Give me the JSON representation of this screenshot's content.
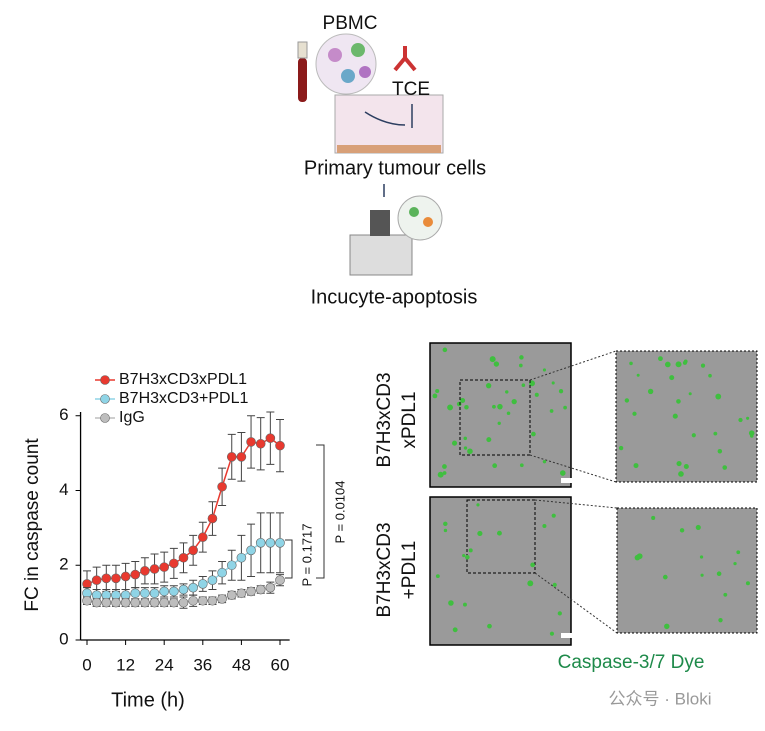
{
  "schematic": {
    "pbmc": "PBMC",
    "tce": "TCE",
    "tumour": "Primary tumour cells",
    "assay": "Incucyte-apoptosis"
  },
  "chart_data": {
    "type": "line",
    "x_label": "Time (h)",
    "y_label": "FC in caspase count",
    "x": [
      0,
      3,
      6,
      9,
      12,
      15,
      18,
      21,
      24,
      27,
      30,
      33,
      36,
      39,
      42,
      45,
      48,
      51,
      54,
      57,
      60
    ],
    "series": [
      {
        "name": "B7H3xCD3xPDL1",
        "color": "#e8392f",
        "values": [
          1.5,
          1.6,
          1.65,
          1.65,
          1.7,
          1.75,
          1.85,
          1.9,
          1.95,
          2.05,
          2.2,
          2.4,
          2.75,
          3.25,
          4.1,
          4.9,
          4.9,
          5.3,
          5.25,
          5.4,
          5.2
        ],
        "errors": [
          0.35,
          0.35,
          0.35,
          0.35,
          0.35,
          0.35,
          0.35,
          0.4,
          0.4,
          0.4,
          0.4,
          0.4,
          0.4,
          0.45,
          0.5,
          0.6,
          0.65,
          0.7,
          0.7,
          0.7,
          0.7
        ]
      },
      {
        "name": "B7H3xCD3+PDL1",
        "color": "#8fd4e6",
        "values": [
          1.25,
          1.2,
          1.2,
          1.2,
          1.2,
          1.25,
          1.25,
          1.25,
          1.3,
          1.3,
          1.35,
          1.4,
          1.5,
          1.6,
          1.8,
          2.0,
          2.2,
          2.4,
          2.6,
          2.6,
          2.6
        ],
        "errors": [
          0.15,
          0.15,
          0.15,
          0.15,
          0.15,
          0.15,
          0.15,
          0.15,
          0.15,
          0.15,
          0.15,
          0.2,
          0.2,
          0.25,
          0.3,
          0.4,
          0.6,
          0.7,
          0.8,
          0.8,
          0.8
        ]
      },
      {
        "name": "IgG",
        "color": "#bdbdbd",
        "values": [
          1.05,
          1.0,
          1.0,
          1.0,
          1.0,
          1.0,
          1.0,
          1.0,
          1.0,
          1.0,
          1.0,
          1.05,
          1.05,
          1.05,
          1.1,
          1.2,
          1.25,
          1.3,
          1.35,
          1.4,
          1.6
        ],
        "errors": [
          0.1,
          0.1,
          0.1,
          0.1,
          0.1,
          0.1,
          0.1,
          0.1,
          0.1,
          0.1,
          0.15,
          0.15,
          0.1,
          0.1,
          0.1,
          0.1,
          0.1,
          0.1,
          0.1,
          0.15,
          0.15
        ]
      }
    ],
    "xlim": [
      -2,
      63
    ],
    "xticks": [
      0,
      12,
      24,
      36,
      48,
      60
    ],
    "ylim": [
      0,
      6.1
    ],
    "yticks": [
      0,
      2,
      4,
      6
    ],
    "annotations": [
      "P = 0.0104",
      "P = 0.1717"
    ]
  },
  "images": {
    "row_labels": [
      [
        "B7H3xCD3",
        "xPDL1"
      ],
      [
        "B7H3xCD3",
        "+PDL1"
      ]
    ],
    "stain": "Caspase-3/7 Dye"
  },
  "watermark": "公众号 · Bloki"
}
